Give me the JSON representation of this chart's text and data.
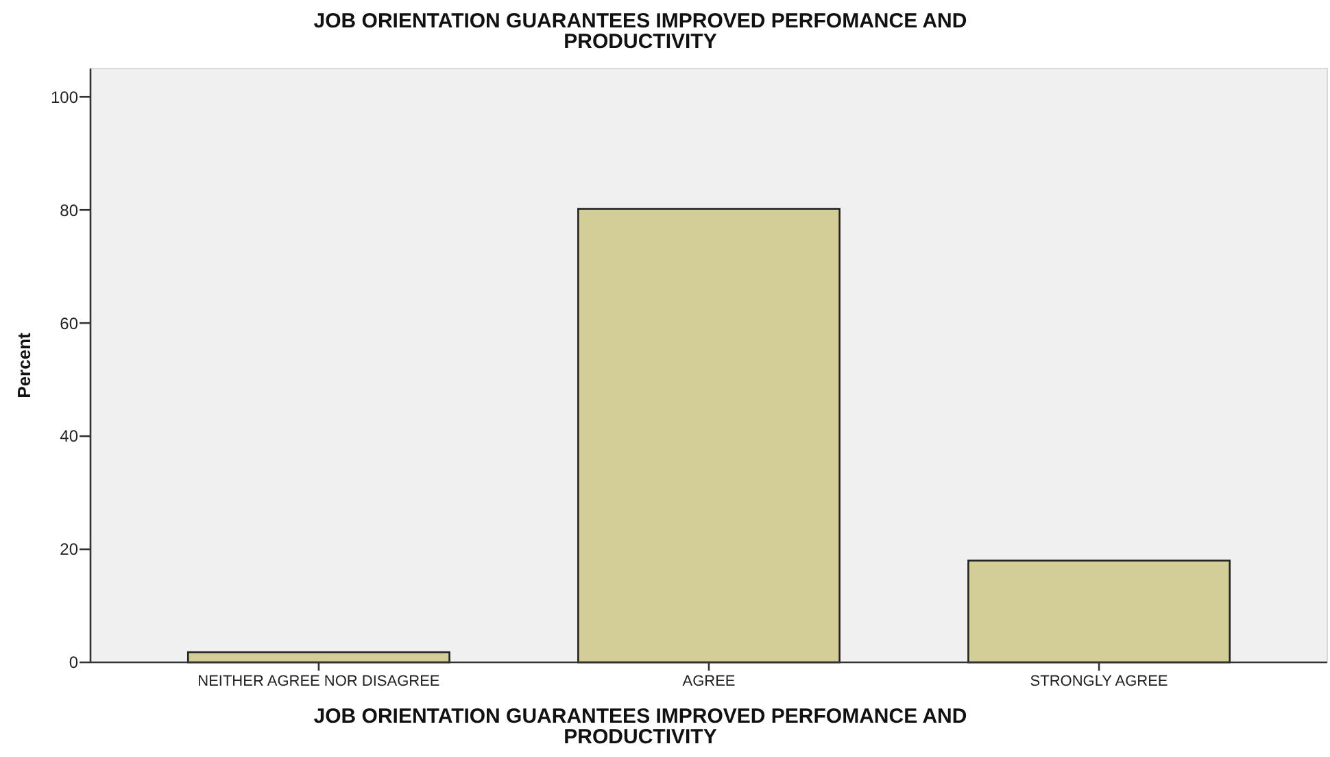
{
  "chart_data": {
    "type": "bar",
    "title": "JOB ORIENTATION GUARANTEES IMPROVED PERFOMANCE AND PRODUCTIVITY",
    "xlabel": "JOB ORIENTATION GUARANTEES IMPROVED PERFOMANCE AND PRODUCTIVITY",
    "ylabel": "Percent",
    "categories": [
      "NEITHER AGREE NOR DISAGREE",
      "AGREE",
      "STRONGLY AGREE"
    ],
    "values": [
      1.8,
      80.2,
      18.0
    ],
    "color": "#d3cd97",
    "ylim": [
      0,
      105
    ],
    "yticks": [
      0,
      20,
      40,
      60,
      80,
      100
    ],
    "grid": false
  }
}
